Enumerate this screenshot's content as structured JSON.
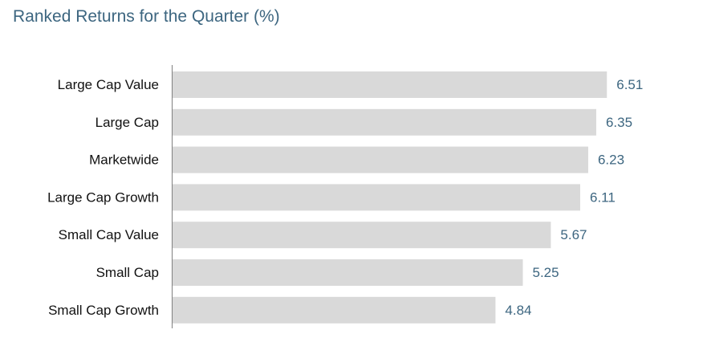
{
  "title": "Ranked Returns for the Quarter (%)",
  "colors": {
    "bar": "#d9d9d9",
    "value_label": "#3d6680",
    "title": "#3d6680",
    "axis": "#808080"
  },
  "chart_data": {
    "type": "bar",
    "orientation": "horizontal",
    "title": "Ranked Returns for the Quarter (%)",
    "categories": [
      "Large Cap Value",
      "Large Cap",
      "Marketwide",
      "Large Cap Growth",
      "Small Cap Value",
      "Small Cap",
      "Small Cap Growth"
    ],
    "values": [
      6.51,
      6.35,
      6.23,
      6.11,
      5.67,
      5.25,
      4.84
    ],
    "value_labels": [
      "6.51",
      "6.35",
      "6.23",
      "6.11",
      "5.67",
      "5.25",
      "4.84"
    ],
    "xlim": [
      0,
      7
    ],
    "grid": false,
    "legend": "none"
  }
}
